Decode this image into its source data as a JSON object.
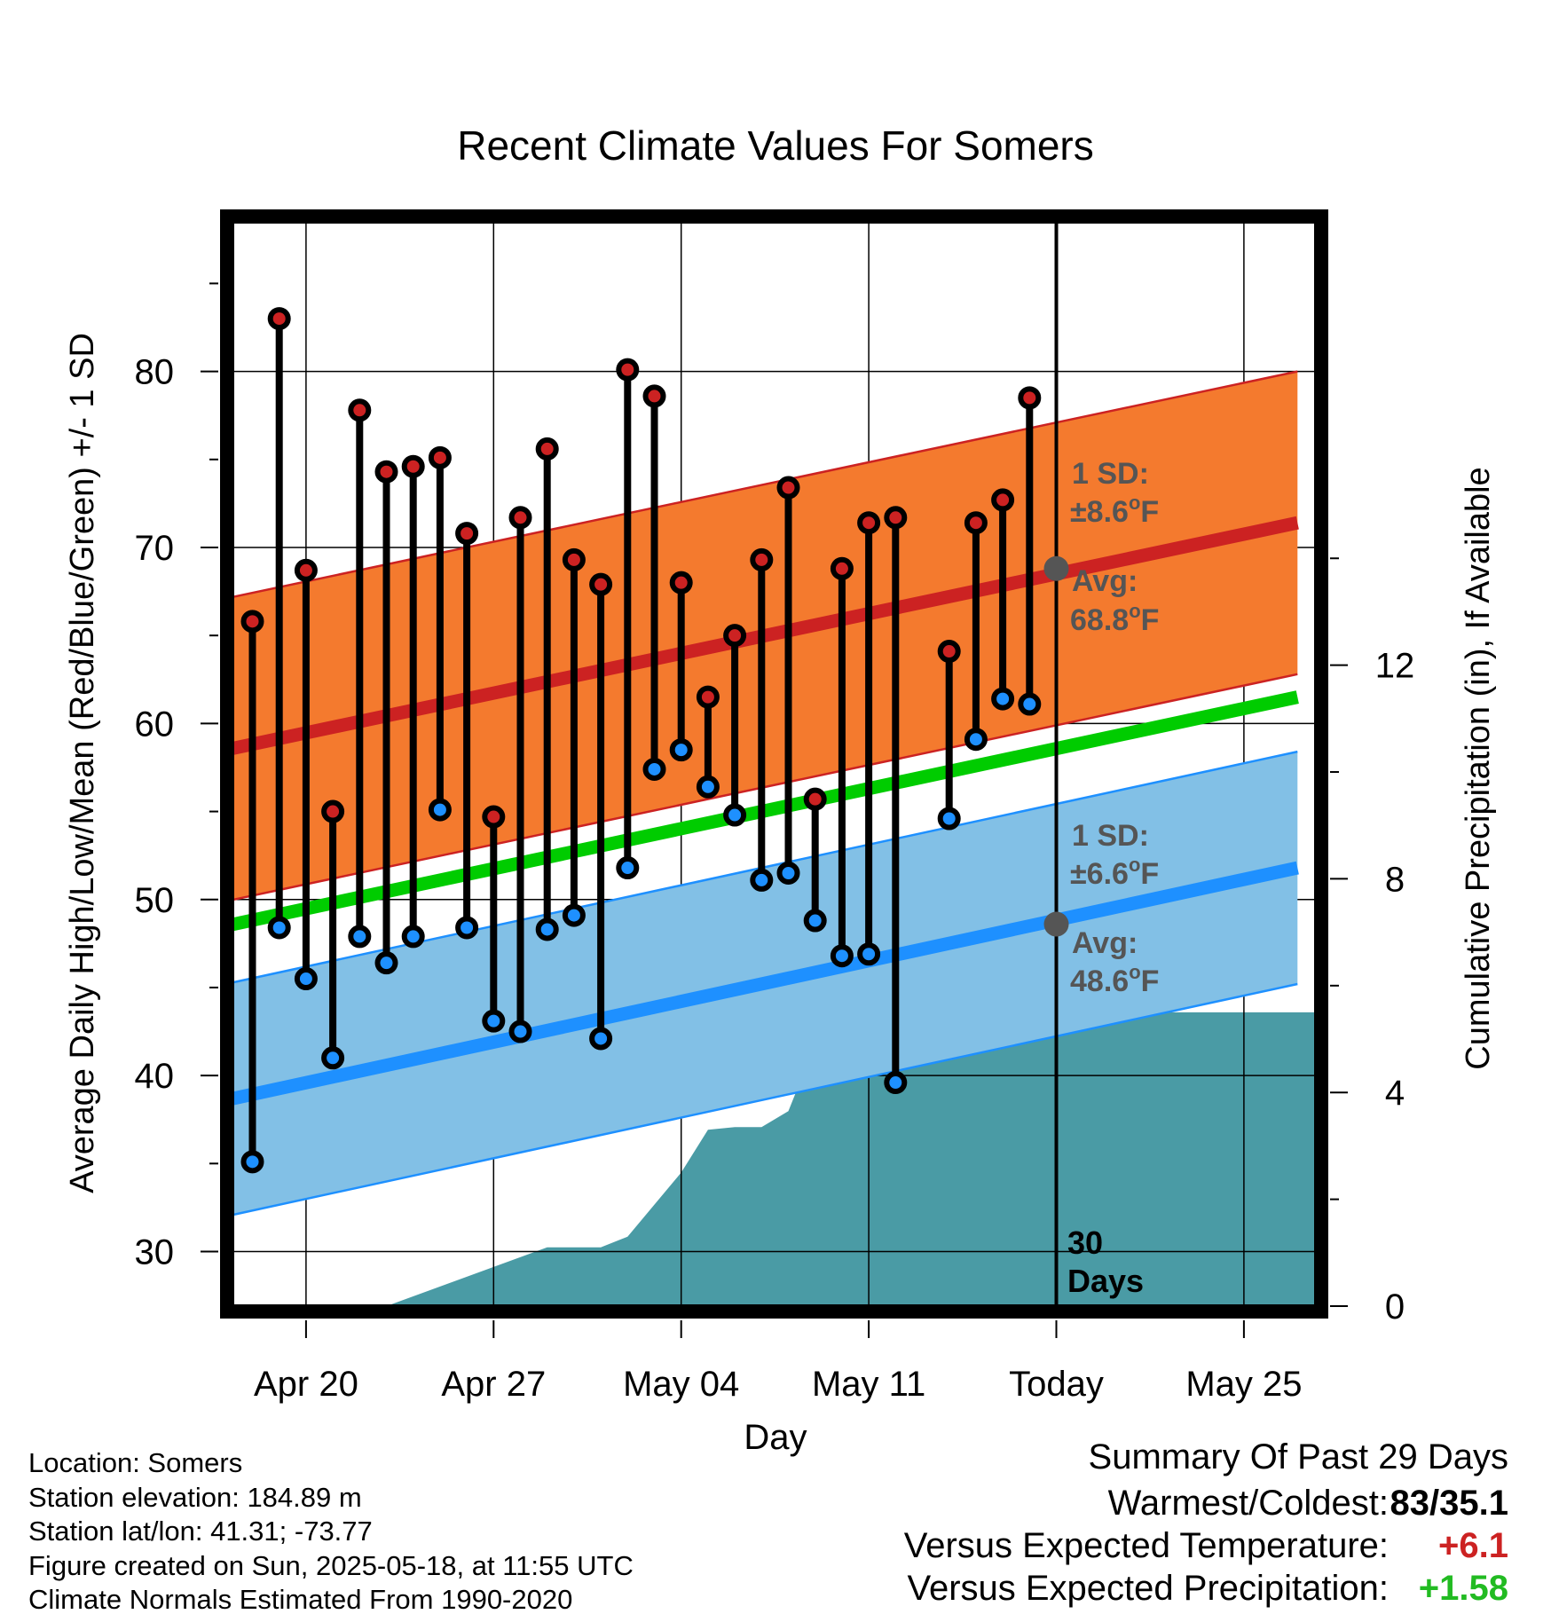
{
  "chart_data": {
    "type": "line",
    "title": "Recent Climate Values For Somers",
    "xlabel": "Day",
    "ylabel": "Average Daily High/Low/Mean (Red/Blue/Green) +/- 1 SD",
    "y2label": "Cumulative Precipitation (in), If Available",
    "x_ticks": [
      "Apr 20",
      "Apr 27",
      "May 04",
      "May 11",
      "Today",
      "May 25"
    ],
    "ylim": [
      26.9,
      88.5
    ],
    "y_ticks": [
      30,
      40,
      50,
      60,
      70,
      80
    ],
    "y2lim": [
      0,
      20.3
    ],
    "y2_ticks": [
      0,
      4,
      8,
      12
    ],
    "grid": true,
    "days": [
      "Apr 18",
      "Apr 19",
      "Apr 20",
      "Apr 21",
      "Apr 22",
      "Apr 23",
      "Apr 24",
      "Apr 25",
      "Apr 26",
      "Apr 27",
      "Apr 28",
      "Apr 29",
      "Apr 30",
      "May 01",
      "May 02",
      "May 03",
      "May 04",
      "May 05",
      "May 06",
      "May 07",
      "May 08",
      "May 09",
      "May 10",
      "May 11",
      "May 12",
      "May 13",
      "May 14",
      "May 15",
      "May 16",
      "May 17"
    ],
    "highs": [
      65.8,
      83.0,
      68.7,
      55.0,
      77.8,
      74.3,
      74.6,
      75.1,
      70.8,
      54.7,
      71.7,
      75.6,
      69.3,
      67.9,
      80.1,
      78.6,
      68.0,
      61.5,
      65.0,
      69.3,
      73.4,
      55.7,
      68.8,
      71.4,
      71.7,
      null,
      64.1,
      71.4,
      72.7,
      78.5
    ],
    "lows": [
      35.1,
      48.4,
      45.5,
      41.0,
      47.9,
      46.4,
      47.9,
      55.1,
      48.4,
      43.1,
      42.5,
      48.3,
      49.1,
      42.1,
      51.8,
      57.4,
      58.5,
      56.4,
      54.8,
      51.1,
      51.5,
      48.8,
      46.8,
      46.9,
      39.6,
      null,
      54.6,
      59.1,
      61.4,
      61.1
    ],
    "normals": {
      "day_range": [
        "Apr 17",
        "May 27"
      ],
      "high_avg": [
        58.5,
        71.4
      ],
      "high_sd": 8.6,
      "low_avg": [
        38.6,
        51.8
      ],
      "low_sd": 6.6,
      "mean_avg": [
        48.5,
        61.5
      ]
    },
    "precip_cumulative": {
      "days": [
        "Apr 23",
        "Apr 29",
        "May 01",
        "May 02",
        "May 03",
        "May 04",
        "May 05",
        "May 06",
        "May 07",
        "May 08",
        "May 09",
        "May 10",
        "May 11",
        "May 12",
        "May 13",
        "May 14",
        "May 15",
        "May 28"
      ],
      "values": [
        0,
        1.1,
        1.1,
        1.3,
        1.9,
        2.5,
        3.3,
        3.35,
        3.35,
        3.65,
        4.9,
        4.9,
        4.9,
        4.9,
        5.05,
        5.5,
        5.5,
        5.5
      ]
    },
    "annotations": {
      "high_sd_label": "1 SD:",
      "high_sd_value": "±8.6",
      "high_avg_label": "Avg:",
      "high_avg_value": "68.8",
      "low_sd_label": "1 SD:",
      "low_sd_value": "±6.6",
      "low_avg_label": "Avg:",
      "low_avg_value": "48.6",
      "unit_sup": "o",
      "unit_letter": "F",
      "today_label_1": "30",
      "today_label_2": "Days",
      "today_high_avg": 68.8,
      "today_low_avg": 48.6
    },
    "colors": {
      "high_band": "#f47a2e",
      "high_line": "#cc2222",
      "low_band": "#82c0e6",
      "low_line": "#1e90ff",
      "mean_line": "#00cc00",
      "precip": "#4a9ba5",
      "high_marker": "#cc2222",
      "low_marker": "#1e90ff",
      "annotation": "#555555"
    }
  },
  "footer": {
    "location": "Location: Somers",
    "elevation": "Station elevation: 184.89 m",
    "latlon": "Station lat/lon: 41.31; -73.77",
    "created": "Figure created on Sun, 2025-05-18, at 11:55 UTC",
    "normals": "Climate Normals Estimated From 1990-2020"
  },
  "summary": {
    "title": "Summary Of Past 29 Days",
    "warm_cold_label": "Warmest/Coldest:",
    "warm_cold_value": "83/35.1",
    "temp_label": "Versus Expected Temperature:",
    "temp_value": "+6.1",
    "temp_color": "#cc2222",
    "precip_label": "Versus Expected Precipitation:",
    "precip_value": "+1.58",
    "precip_color": "#22bb22"
  }
}
